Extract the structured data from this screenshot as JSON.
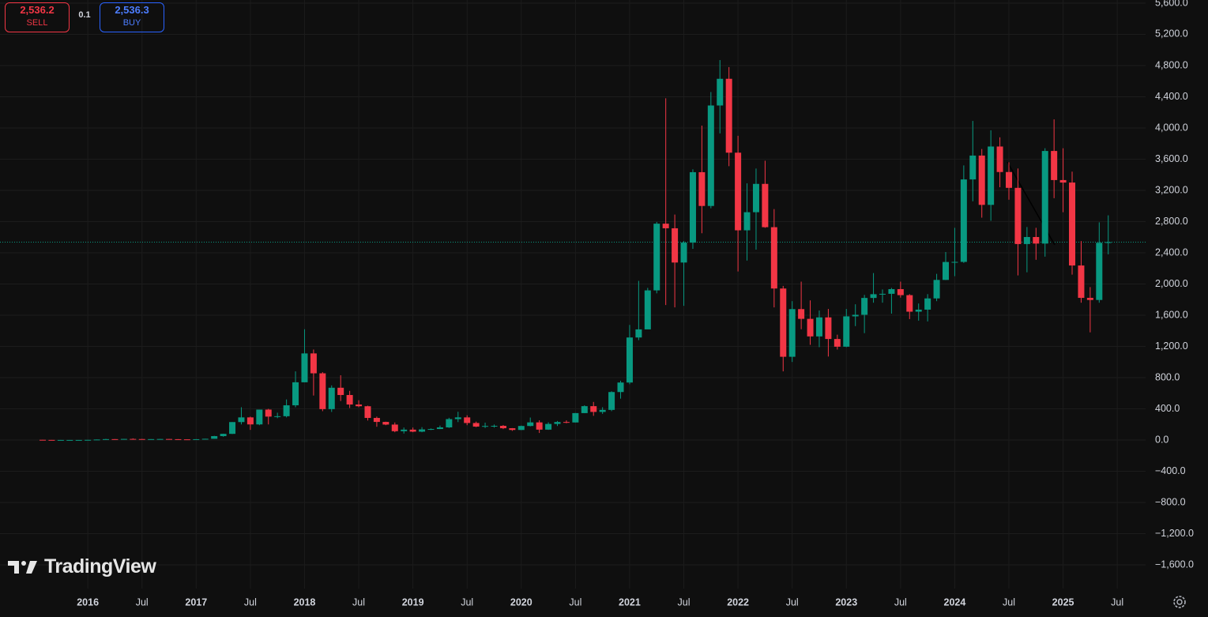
{
  "trade_panel": {
    "sell_price": "2,536.2",
    "sell_label": "SELL",
    "spread": "0.1",
    "buy_price": "2,536.3",
    "buy_label": "BUY"
  },
  "watermark": "TradingView",
  "chart_data": {
    "type": "candlestick",
    "up_color": "#089981",
    "down_color": "#f23645",
    "grid": true,
    "price_line": 2536.2,
    "ylim": [
      -1904,
      5640
    ],
    "yticks": [
      {
        "value": -1600,
        "label": "−1,600.0"
      },
      {
        "value": -1200,
        "label": "−1,200.0"
      },
      {
        "value": -800,
        "label": "−800.0"
      },
      {
        "value": -400,
        "label": "−400.0"
      },
      {
        "value": 0,
        "label": "0.0"
      },
      {
        "value": 400,
        "label": "400.0"
      },
      {
        "value": 800,
        "label": "800.0"
      },
      {
        "value": 1200,
        "label": "1,200.0"
      },
      {
        "value": 1600,
        "label": "1,600.0"
      },
      {
        "value": 2000,
        "label": "2,000.0"
      },
      {
        "value": 2400,
        "label": "2,400.0"
      },
      {
        "value": 2800,
        "label": "2,800.0"
      },
      {
        "value": 3200,
        "label": "3,200.0"
      },
      {
        "value": 3600,
        "label": "3,600.0"
      },
      {
        "value": 4000,
        "label": "4,000.0"
      },
      {
        "value": 4400,
        "label": "4,400.0"
      },
      {
        "value": 4800,
        "label": "4,800.0"
      },
      {
        "value": 5200,
        "label": "5,200.0"
      },
      {
        "value": 5600,
        "label": "5,600.0"
      }
    ],
    "categories": [
      null,
      null,
      null,
      null,
      null,
      "2016",
      null,
      null,
      null,
      null,
      null,
      "Jul",
      null,
      null,
      null,
      null,
      null,
      "2017",
      null,
      null,
      null,
      null,
      null,
      "Jul",
      null,
      null,
      null,
      null,
      null,
      "2018",
      null,
      null,
      null,
      null,
      null,
      "Jul",
      null,
      null,
      null,
      null,
      null,
      "2019",
      null,
      null,
      null,
      null,
      null,
      "Jul",
      null,
      null,
      null,
      null,
      null,
      "2020",
      null,
      null,
      null,
      null,
      null,
      "Jul",
      null,
      null,
      null,
      null,
      null,
      "2021",
      null,
      null,
      null,
      null,
      null,
      "Jul",
      null,
      null,
      null,
      null,
      null,
      "2022",
      null,
      null,
      null,
      null,
      null,
      "Jul",
      null,
      null,
      null,
      null,
      null,
      "2023",
      null,
      null,
      null,
      null,
      null,
      "Jul",
      null,
      null,
      null,
      null,
      null,
      "2024",
      null,
      null,
      null,
      null,
      null,
      "Jul",
      null,
      null,
      null,
      null,
      null,
      "2025",
      null,
      null,
      null,
      null,
      null,
      "Jul"
    ],
    "open": [
      2.8,
      1.4,
      0.7,
      0.9,
      0.9,
      0.9,
      2.2,
      6.3,
      11.4,
      8.8,
      14,
      12.4,
      11.6,
      11.6,
      13.2,
      10.7,
      8.5,
      8.2,
      10.7,
      15.7,
      50,
      79,
      230,
      290,
      200,
      390,
      300,
      305,
      445,
      740,
      1110,
      855,
      396,
      670,
      577,
      455,
      433,
      283,
      232,
      198,
      113,
      133,
      107,
      136,
      141,
      162,
      268,
      290,
      218,
      172,
      180,
      182,
      151,
      129,
      180,
      226,
      133,
      206,
      231,
      225,
      345,
      434,
      360,
      386,
      615,
      737,
      1314,
      1418,
      1918,
      2773,
      2714,
      2275,
      2530,
      3433,
      3000,
      4288,
      4630,
      3683,
      2688,
      2920,
      3283,
      2728,
      1942,
      1067,
      1678,
      1553,
      1328,
      1572,
      1295,
      1196,
      1585,
      1605,
      1821,
      1869,
      1874,
      1934,
      1857,
      1645,
      1671,
      1815,
      2052,
      2282,
      2283,
      3340,
      3646,
      3014,
      3762,
      3435,
      3232,
      2512,
      2602,
      2518,
      3705,
      3332,
      3300,
      2237,
      1822,
      1795,
      2528,
      null
    ],
    "high": [
      3,
      1.4,
      1.3,
      1,
      1,
      2.6,
      6.5,
      15,
      12,
      14.8,
      21,
      14.8,
      12,
      14,
      14,
      11.5,
      8.7,
      11.3,
      16.5,
      54,
      81,
      230,
      420,
      300,
      390,
      400,
      350,
      520,
      880,
      1420,
      1160,
      870,
      700,
      830,
      630,
      510,
      440,
      300,
      235,
      225,
      160,
      160,
      165,
      148,
      185,
      285,
      362,
      317,
      236,
      223,
      198,
      192,
      153,
      185,
      288,
      253,
      227,
      244,
      252,
      346,
      445,
      488,
      420,
      625,
      760,
      1475,
      2040,
      1950,
      2795,
      4380,
      2890,
      2550,
      3470,
      4030,
      4460,
      4870,
      4780,
      3900,
      3290,
      3480,
      3580,
      2960,
      1975,
      1780,
      2030,
      1790,
      1660,
      1680,
      1350,
      1680,
      1740,
      1860,
      2140,
      1930,
      1950,
      2030,
      1870,
      1750,
      1870,
      2130,
      2410,
      2720,
      3520,
      4090,
      3730,
      3970,
      3880,
      3560,
      3480,
      2730,
      2720,
      3740,
      4110,
      3740,
      3440,
      2550,
      1960,
      2790,
      2880,
      null
    ],
    "low": [
      0.5,
      0.6,
      0.4,
      0.8,
      0.8,
      0.9,
      2.2,
      6,
      7,
      8.8,
      11,
      10,
      10,
      11,
      10.6,
      7.4,
      6.3,
      8,
      10.5,
      15.5,
      42,
      77,
      200,
      130,
      190,
      200,
      280,
      290,
      420,
      740,
      570,
      370,
      360,
      500,
      410,
      420,
      250,
      170,
      190,
      100,
      83,
      100,
      100,
      128,
      140,
      155,
      230,
      190,
      165,
      154,
      159,
      140,
      117,
      127,
      175,
      90,
      130,
      180,
      215,
      225,
      345,
      310,
      335,
      370,
      530,
      715,
      1280,
      1450,
      1880,
      1730,
      1700,
      1720,
      2450,
      2650,
      2970,
      3930,
      3510,
      2160,
      2300,
      2440,
      2720,
      1700,
      880,
      1000,
      1420,
      1220,
      1190,
      1070,
      1160,
      1190,
      1460,
      1370,
      1760,
      1760,
      1620,
      1825,
      1550,
      1530,
      1520,
      1780,
      2050,
      2100,
      2270,
      3060,
      2850,
      2810,
      3240,
      3080,
      2110,
      2150,
      2310,
      2350,
      3100,
      2920,
      2120,
      1760,
      1380,
      1760,
      2380,
      null
    ],
    "close": [
      1.4,
      0.7,
      0.9,
      0.9,
      0.9,
      2.2,
      6.3,
      11.4,
      8.8,
      14,
      12.4,
      11.6,
      11.6,
      13.2,
      10.7,
      8.5,
      8.2,
      10.7,
      15.7,
      50,
      79,
      230,
      290,
      200,
      390,
      300,
      305,
      445,
      740,
      1110,
      855,
      396,
      670,
      577,
      455,
      433,
      283,
      232,
      198,
      113,
      133,
      107,
      136,
      141,
      162,
      268,
      290,
      218,
      172,
      180,
      182,
      151,
      129,
      180,
      226,
      133,
      206,
      231,
      225,
      345,
      434,
      360,
      386,
      615,
      737,
      1314,
      1418,
      1918,
      2773,
      2714,
      2275,
      2530,
      3433,
      3000,
      4288,
      4630,
      3683,
      2688,
      2920,
      3283,
      2728,
      1942,
      1067,
      1678,
      1553,
      1328,
      1572,
      1295,
      1196,
      1585,
      1605,
      1821,
      1869,
      1874,
      1934,
      1857,
      1645,
      1671,
      1815,
      2052,
      2282,
      2283,
      3340,
      3646,
      3014,
      3762,
      3435,
      3232,
      2512,
      2602,
      2518,
      3705,
      3332,
      3300,
      2237,
      1822,
      1795,
      2528,
      2536,
      null
    ]
  }
}
